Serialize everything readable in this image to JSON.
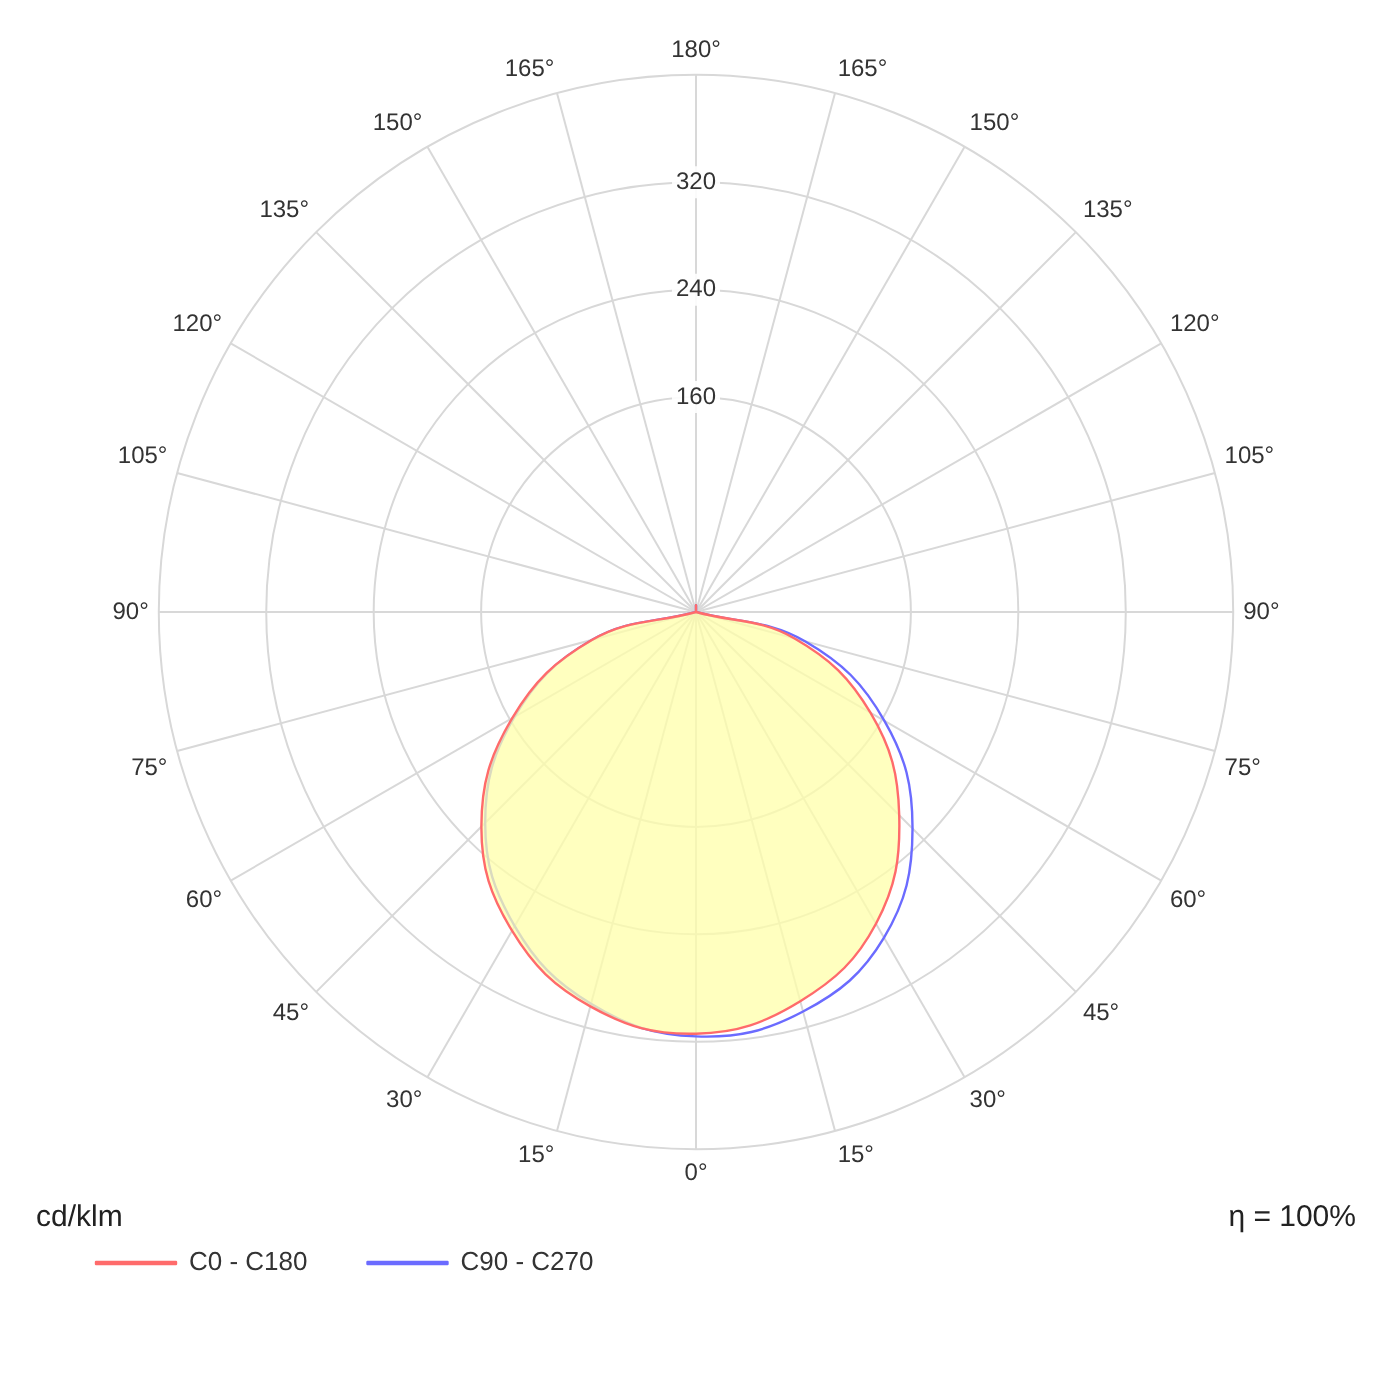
{
  "chart_data": {
    "type": "radar",
    "categories": [
      "180°",
      "165°",
      "150°",
      "135°",
      "120°",
      "105°",
      "90°",
      "75°",
      "60°",
      "45°",
      "30°",
      "15°",
      "0°",
      "15°",
      "30°",
      "45°",
      "60°",
      "75°",
      "90°",
      "105°",
      "120°",
      "135°",
      "150°",
      "165°"
    ],
    "series": [
      {
        "name": "C0 - C180",
        "color": "#ff6b6b",
        "values": [
          5,
          0,
          0,
          0,
          0,
          0,
          0,
          76,
          150,
          214,
          268,
          300,
          314,
          304,
          274,
          226,
          158,
          80,
          0,
          0,
          0,
          0,
          0,
          0
        ]
      },
      {
        "name": "C90 - C270",
        "color": "#6b6bff",
        "values": [
          5,
          0,
          0,
          0,
          0,
          0,
          0,
          84,
          162,
          228,
          280,
          308,
          316,
          302,
          270,
          222,
          156,
          80,
          0,
          0,
          0,
          0,
          0,
          0
        ]
      }
    ],
    "ylim": [
      0,
      400
    ],
    "yticks": [
      160,
      240,
      320
    ],
    "grid": true,
    "legend": "bottom",
    "marker": "none",
    "line_style": "solid",
    "annotations": [
      "cd/klm",
      "η = 100%"
    ]
  }
}
